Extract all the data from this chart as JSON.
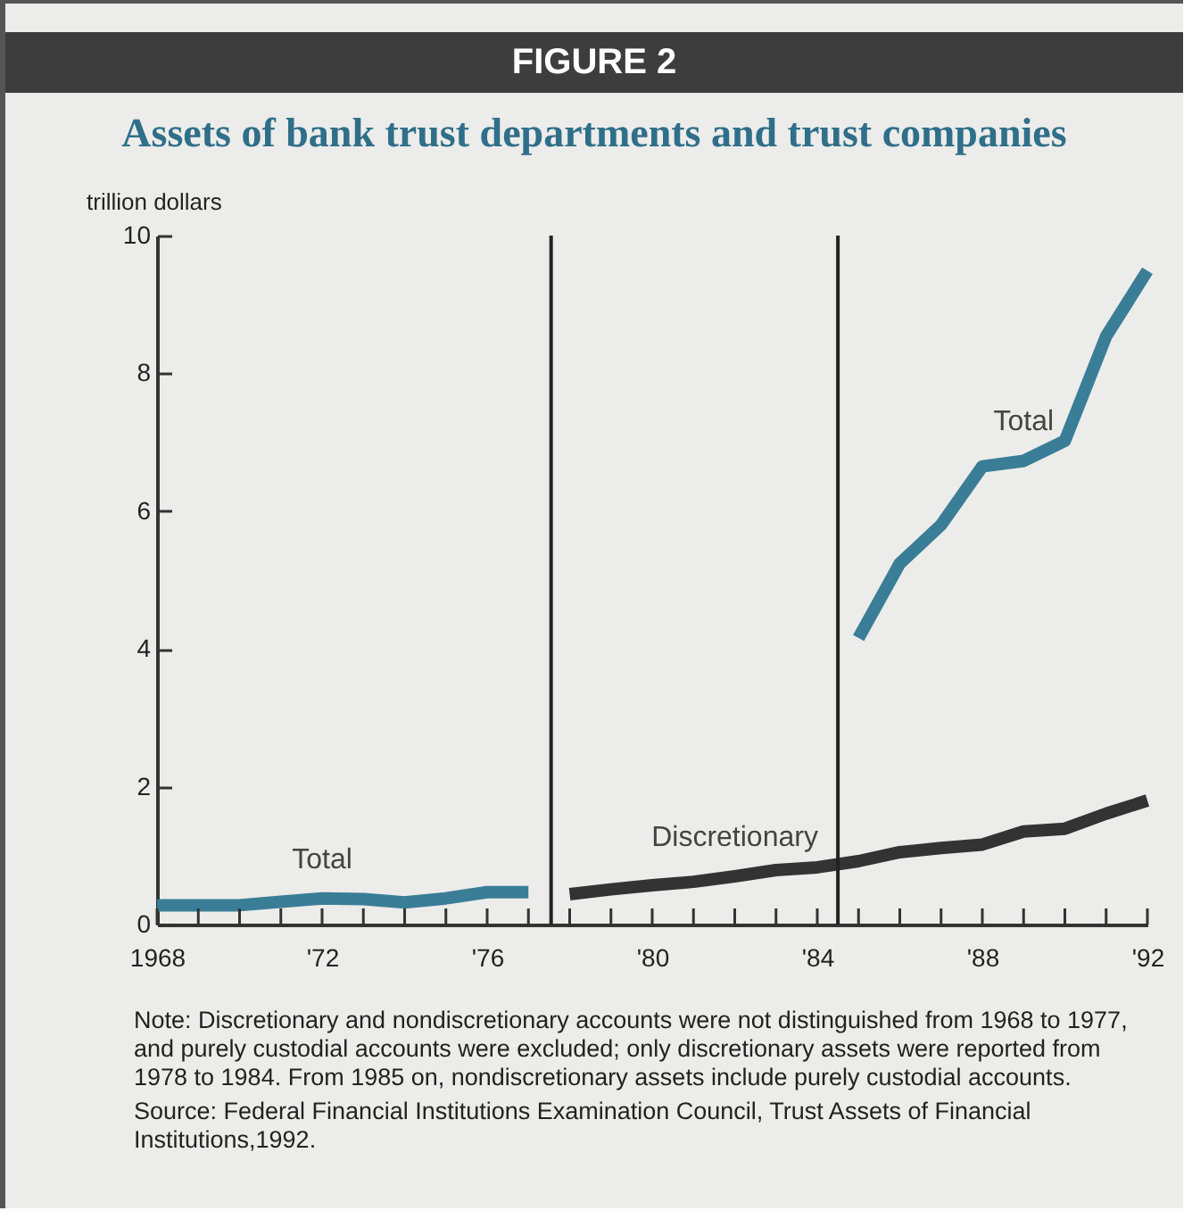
{
  "chart_data": {
    "type": "line",
    "title": "FIGURE 2",
    "subtitle": "Assets of bank trust departments and trust companies",
    "ylabel": "trillion dollars",
    "xlim": [
      1968,
      1992
    ],
    "xticks": [
      {
        "value": 1968,
        "label": "1968"
      },
      {
        "value": 1969,
        "label": null
      },
      {
        "value": 1970,
        "label": null
      },
      {
        "value": 1971,
        "label": null
      },
      {
        "value": 1972,
        "label": "'72"
      },
      {
        "value": 1973,
        "label": null
      },
      {
        "value": 1974,
        "label": null
      },
      {
        "value": 1975,
        "label": null
      },
      {
        "value": 1976,
        "label": "'76"
      },
      {
        "value": 1977,
        "label": null
      },
      {
        "value": 1978,
        "label": null
      },
      {
        "value": 1979,
        "label": null
      },
      {
        "value": 1980,
        "label": "'80"
      },
      {
        "value": 1981,
        "label": null
      },
      {
        "value": 1982,
        "label": null
      },
      {
        "value": 1983,
        "label": null
      },
      {
        "value": 1984,
        "label": "'84"
      },
      {
        "value": 1985,
        "label": null
      },
      {
        "value": 1986,
        "label": null
      },
      {
        "value": 1987,
        "label": null
      },
      {
        "value": 1988,
        "label": "'88"
      },
      {
        "value": 1989,
        "label": null
      },
      {
        "value": 1990,
        "label": null
      },
      {
        "value": 1991,
        "label": null
      },
      {
        "value": 1992,
        "label": "'92"
      }
    ],
    "ylim": [
      0,
      10
    ],
    "yticks": [
      0,
      2,
      4,
      6,
      8,
      10
    ],
    "grid": false,
    "series": [
      {
        "name": "Total",
        "color": "#3a7d96",
        "x": [
          1968,
          1969,
          1970,
          1971,
          1972,
          1973,
          1974,
          1975,
          1976,
          1977
        ],
        "values": [
          0.28,
          0.28,
          0.28,
          0.33,
          0.38,
          0.37,
          0.32,
          0.38,
          0.47,
          0.47
        ]
      },
      {
        "name": "Discretionary",
        "color": "#333333",
        "x": [
          1978,
          1979,
          1980,
          1981,
          1982,
          1983,
          1984,
          1985,
          1986,
          1987,
          1988,
          1989,
          1990,
          1991,
          1992
        ],
        "values": [
          0.44,
          0.51,
          0.57,
          0.62,
          0.7,
          0.79,
          0.83,
          0.92,
          1.05,
          1.11,
          1.16,
          1.35,
          1.39,
          1.61,
          1.8
        ]
      },
      {
        "name": "Total",
        "color": "#3a7d96",
        "x": [
          1985,
          1986,
          1987,
          1988,
          1989,
          1990,
          1991,
          1992
        ],
        "values": [
          4.16,
          5.24,
          5.8,
          6.65,
          6.73,
          7.02,
          8.54,
          9.49
        ]
      }
    ],
    "ref_lines": [
      {
        "axis": "x",
        "value": 1977.55,
        "color": "#222222"
      },
      {
        "axis": "x",
        "value": 1984.5,
        "color": "#222222"
      }
    ],
    "annotations": [
      "Note: Discretionary and nondiscretionary accounts were not distinguished from 1968 to 1977, and purely custodial accounts were excluded; only discretionary assets were reported from 1978 to 1984.  From 1985 on, nondiscretionary assets include purely custodial accounts.",
      "Source: Federal Financial Institutions Examination Council, Trust Assets of Financial Institutions,1992."
    ]
  }
}
